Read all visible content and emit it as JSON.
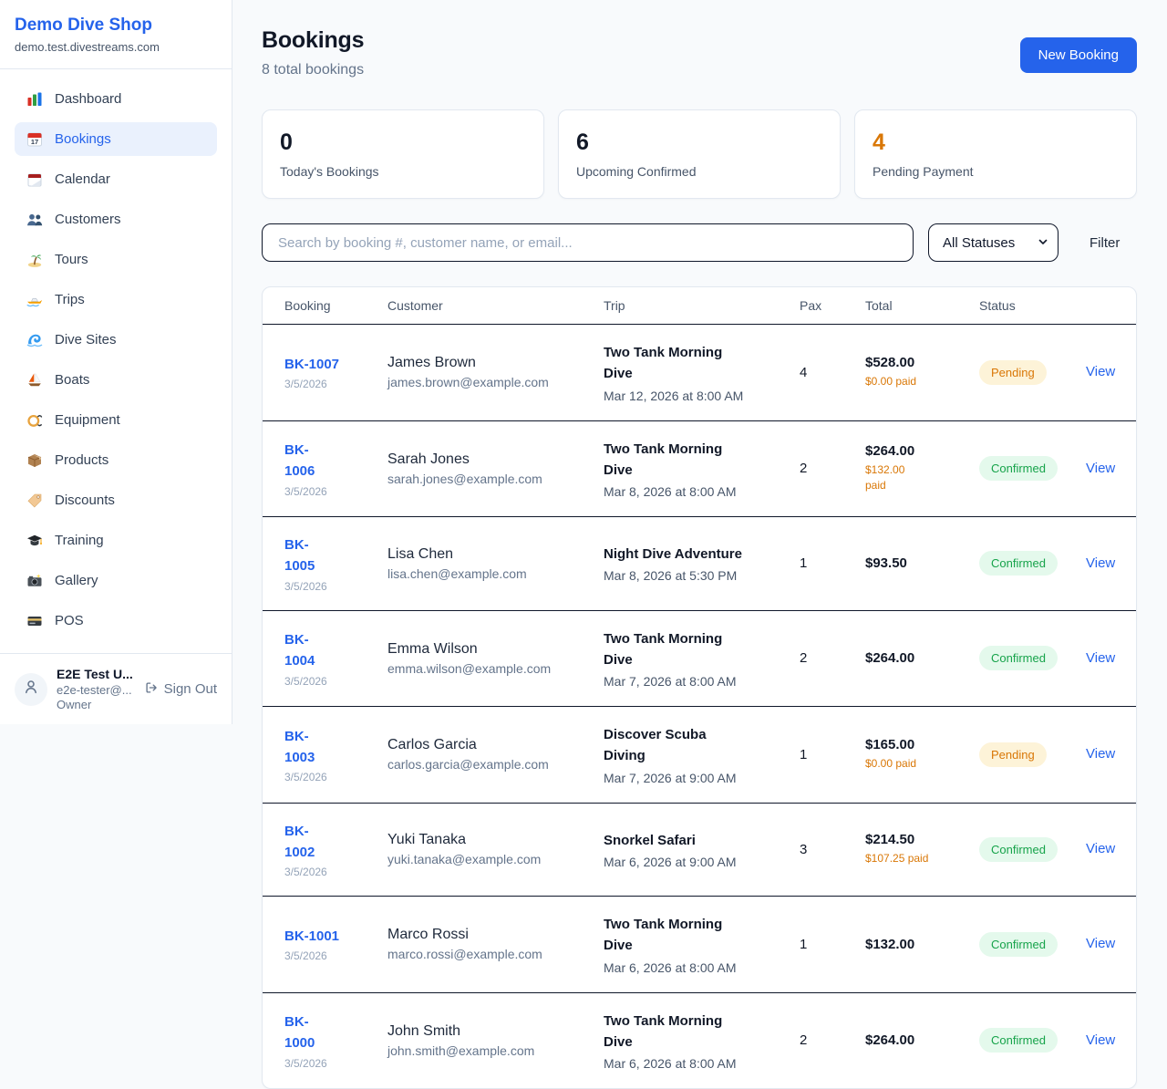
{
  "colors": {
    "accent": "#2563eb",
    "page_bg": "#f8fafc",
    "border": "#e2e8f0",
    "text_dark": "#0f172a",
    "warning": "#d97706",
    "pending_bg": "#fdf3d8",
    "pending_text": "#d97706",
    "confirmed_bg": "#e4f9ec",
    "confirmed_text": "#16a34a"
  },
  "sidebar": {
    "shop_name": "Demo Dive Shop",
    "shop_domain": "demo.test.divestreams.com",
    "items": [
      {
        "label": "Dashboard",
        "icon": "bar-chart",
        "active": false
      },
      {
        "label": "Bookings",
        "icon": "calendar-date",
        "active": true
      },
      {
        "label": "Calendar",
        "icon": "calendar-pad",
        "active": false
      },
      {
        "label": "Customers",
        "icon": "people",
        "active": false
      },
      {
        "label": "Tours",
        "icon": "island",
        "active": false
      },
      {
        "label": "Trips",
        "icon": "speedboat",
        "active": false
      },
      {
        "label": "Dive Sites",
        "icon": "wave",
        "active": false
      },
      {
        "label": "Boats",
        "icon": "sailboat",
        "active": false
      },
      {
        "label": "Equipment",
        "icon": "dive-mask",
        "active": false
      },
      {
        "label": "Products",
        "icon": "package",
        "active": false
      },
      {
        "label": "Discounts",
        "icon": "tag",
        "active": false
      },
      {
        "label": "Training",
        "icon": "grad-cap",
        "active": false
      },
      {
        "label": "Gallery",
        "icon": "camera",
        "active": false
      },
      {
        "label": "POS",
        "icon": "credit-card",
        "active": false
      }
    ],
    "user": {
      "name": "E2E Test U...",
      "email": "e2e-tester@...",
      "role": "Owner",
      "sign_out_label": "Sign Out"
    }
  },
  "header": {
    "title": "Bookings",
    "subtitle": "8 total bookings",
    "new_booking_label": "New Booking"
  },
  "stats": [
    {
      "value": "0",
      "label": "Today's Bookings",
      "value_color": "#111827"
    },
    {
      "value": "6",
      "label": "Upcoming Confirmed",
      "value_color": "#111827"
    },
    {
      "value": "4",
      "label": "Pending Payment",
      "value_color": "#d97706"
    }
  ],
  "filters": {
    "search_placeholder": "Search by booking #, customer name, or email...",
    "status_selected": "All Statuses",
    "filter_label": "Filter"
  },
  "table": {
    "columns": [
      "Booking",
      "Customer",
      "Trip",
      "Pax",
      "Total",
      "Status"
    ],
    "view_label": "View",
    "rows": [
      {
        "booking_id": "BK-1007",
        "id_single_line": true,
        "date": "3/5/2026",
        "customer": "James Brown",
        "email": "james.brown@example.com",
        "trip": "Two Tank Morning Dive",
        "trip_datetime": "Mar 12, 2026 at 8:00 AM",
        "pax": "4",
        "total": "$528.00",
        "paid": "$0.00 paid",
        "paid_single_line": true,
        "status": "Pending"
      },
      {
        "booking_id": "BK-1006",
        "id_single_line": false,
        "date": "3/5/2026",
        "customer": "Sarah Jones",
        "email": "sarah.jones@example.com",
        "trip": "Two Tank Morning Dive",
        "trip_datetime": "Mar 8, 2026 at 8:00 AM",
        "pax": "2",
        "total": "$264.00",
        "paid": "$132.00 paid",
        "paid_single_line": false,
        "status": "Confirmed"
      },
      {
        "booking_id": "BK-1005",
        "id_single_line": false,
        "date": "3/5/2026",
        "customer": "Lisa Chen",
        "email": "lisa.chen@example.com",
        "trip": "Night Dive Adventure",
        "trip_datetime": "Mar 8, 2026 at 5:30 PM",
        "pax": "1",
        "total": "$93.50",
        "paid": "",
        "paid_single_line": true,
        "status": "Confirmed"
      },
      {
        "booking_id": "BK-1004",
        "id_single_line": false,
        "date": "3/5/2026",
        "customer": "Emma Wilson",
        "email": "emma.wilson@example.com",
        "trip": "Two Tank Morning Dive",
        "trip_datetime": "Mar 7, 2026 at 8:00 AM",
        "pax": "2",
        "total": "$264.00",
        "paid": "",
        "paid_single_line": true,
        "status": "Confirmed"
      },
      {
        "booking_id": "BK-1003",
        "id_single_line": false,
        "date": "3/5/2026",
        "customer": "Carlos Garcia",
        "email": "carlos.garcia@example.com",
        "trip": "Discover Scuba Diving",
        "trip_datetime": "Mar 7, 2026 at 9:00 AM",
        "pax": "1",
        "total": "$165.00",
        "paid": "$0.00 paid",
        "paid_single_line": true,
        "status": "Pending"
      },
      {
        "booking_id": "BK-1002",
        "id_single_line": false,
        "date": "3/5/2026",
        "customer": "Yuki Tanaka",
        "email": "yuki.tanaka@example.com",
        "trip": "Snorkel Safari",
        "trip_datetime": "Mar 6, 2026 at 9:00 AM",
        "pax": "3",
        "total": "$214.50",
        "paid": "$107.25 paid",
        "paid_single_line": true,
        "status": "Confirmed"
      },
      {
        "booking_id": "BK-1001",
        "id_single_line": true,
        "date": "3/5/2026",
        "customer": "Marco Rossi",
        "email": "marco.rossi@example.com",
        "trip": "Two Tank Morning Dive",
        "trip_datetime": "Mar 6, 2026 at 8:00 AM",
        "pax": "1",
        "total": "$132.00",
        "paid": "",
        "paid_single_line": true,
        "status": "Confirmed"
      },
      {
        "booking_id": "BK-1000",
        "id_single_line": false,
        "date": "3/5/2026",
        "customer": "John Smith",
        "email": "john.smith@example.com",
        "trip": "Two Tank Morning Dive",
        "trip_datetime": "Mar 6, 2026 at 8:00 AM",
        "pax": "2",
        "total": "$264.00",
        "paid": "",
        "paid_single_line": true,
        "status": "Confirmed"
      }
    ]
  }
}
